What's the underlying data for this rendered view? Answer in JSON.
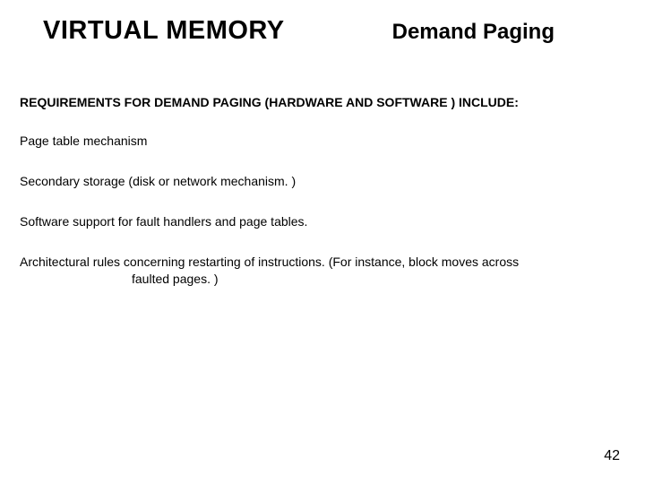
{
  "header": {
    "main_title": "VIRTUAL MEMORY",
    "sub_title": "Demand Paging"
  },
  "section_heading": "REQUIREMENTS FOR DEMAND PAGING (HARDWARE AND SOFTWARE ) INCLUDE:",
  "items": [
    "Page table mechanism",
    "Secondary storage (disk or network mechanism. )",
    "Software support for fault handlers and page tables."
  ],
  "item4_line1": "Architectural rules concerning restarting of instructions. (For instance, block moves across",
  "item4_line2": "faulted pages. )",
  "page_number": "42",
  "colors": {
    "background": "#ffffff",
    "text": "#000000"
  },
  "typography": {
    "main_title_size": 29,
    "sub_title_size": 24,
    "heading_size": 14,
    "body_size": 14,
    "page_num_size": 16,
    "font_family": "Arial"
  }
}
